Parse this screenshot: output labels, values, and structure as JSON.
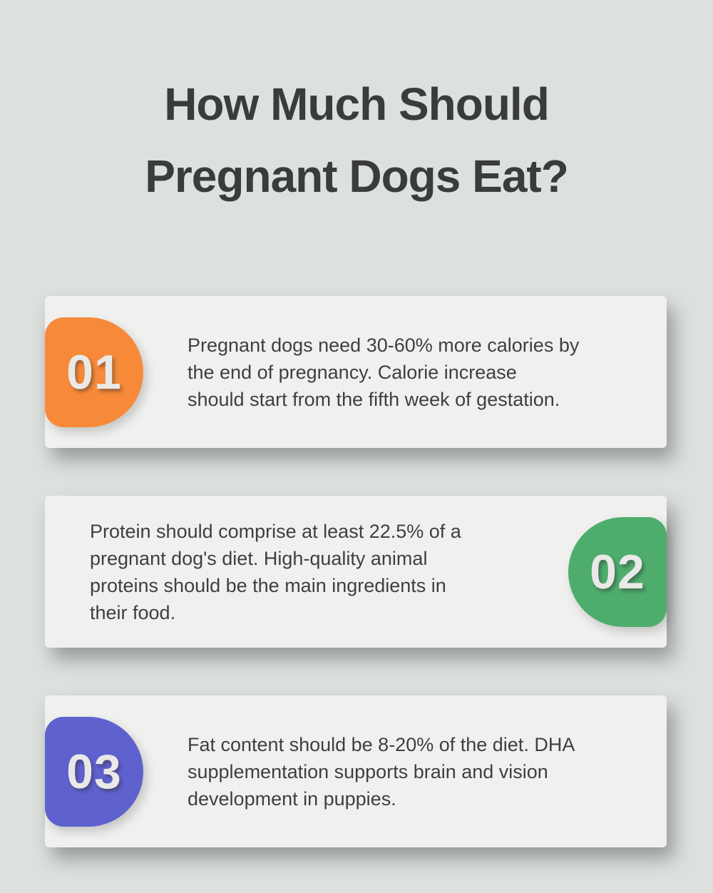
{
  "page": {
    "background_color": "#dde1de",
    "card_background_color": "#f0f1ef"
  },
  "title": {
    "text": "How Much Should Pregnant Dogs Eat?",
    "lines": [
      "How Much Should",
      "Pregnant Dogs Eat?"
    ],
    "color": "#3a3b3d"
  },
  "cards": [
    {
      "number": "01",
      "accent": "#f68a39",
      "badge_side": "left",
      "lines": [
        "Pregnant dogs need 30-60% more calories by",
        "the end of pregnancy. Calorie increase",
        "should start from the fifth week of gestation."
      ]
    },
    {
      "number": "02",
      "accent": "#4ead6d",
      "badge_side": "right",
      "lines": [
        "Protein should comprise at least 22.5% of a",
        "pregnant dog's diet. High-quality animal",
        "proteins should be the main ingredients in",
        "their food."
      ]
    },
    {
      "number": "03",
      "accent": "#5f61ce",
      "badge_side": "left",
      "lines": [
        "Fat content should be 8-20% of the diet. DHA",
        "supplementation supports brain and vision",
        "development in puppies."
      ]
    }
  ],
  "badge_number_color": "#eae9e7",
  "body_text_color": "#3e3f42"
}
